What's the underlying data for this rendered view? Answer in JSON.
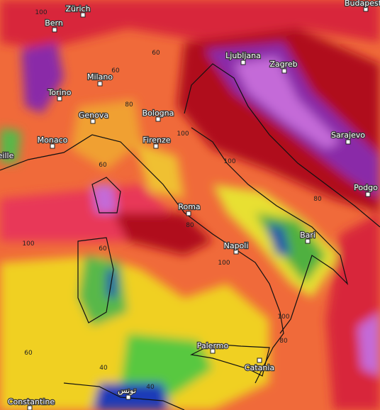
{
  "cities": [
    "Zürich",
    "Budapest",
    "Bern",
    "Ljubljana",
    "Zagreb",
    "Milano",
    "Torino",
    "Genova",
    "Bologna",
    "Monaco",
    "eille",
    "Firenze",
    "Sarajevo",
    "Podgo",
    "Roma",
    "Bari",
    "Napoli",
    "Palermo",
    "Catania",
    "Constantine",
    "تونس"
  ],
  "contour_labels": [
    "100",
    "60",
    "60",
    "80",
    "100",
    "100",
    "80",
    "60",
    "80",
    "100",
    "60",
    "100",
    "100",
    "80",
    "60",
    "40",
    "40"
  ]
}
